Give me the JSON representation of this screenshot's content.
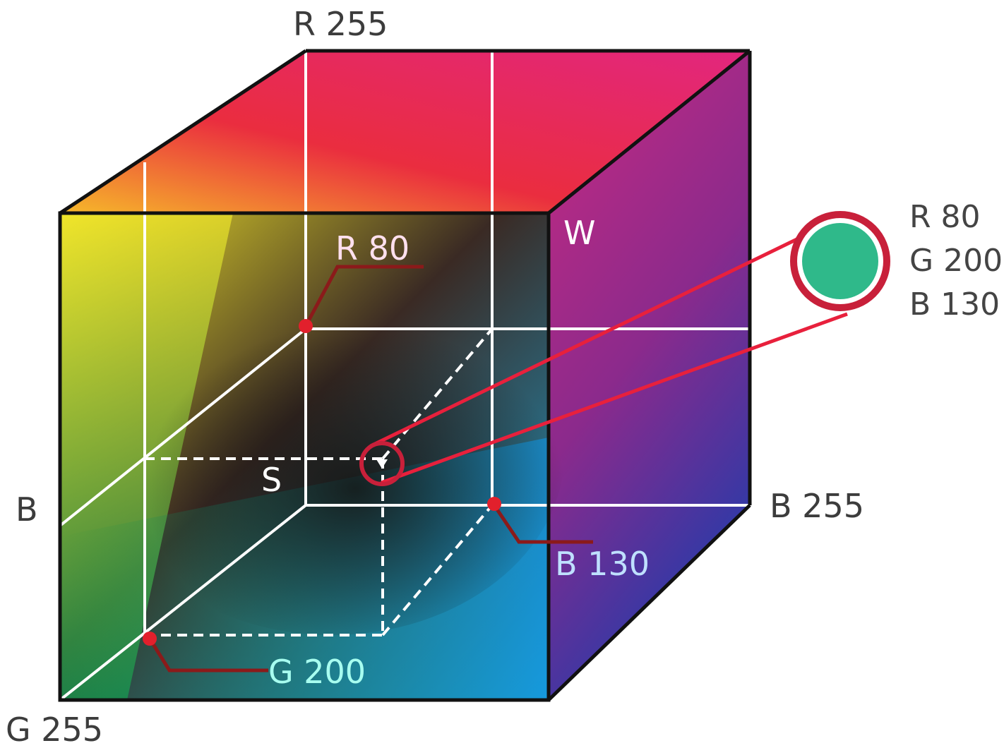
{
  "labels": {
    "r255": "R 255",
    "w": "W",
    "r80": "R 80",
    "s": "S",
    "b_axis": "B",
    "b255": "B 255",
    "b130": "B 130",
    "g200": "G 200",
    "g255": "G 255"
  },
  "swatch": {
    "r": "R 80",
    "g": "G 200",
    "b": "B 130",
    "color": "#2fb98a",
    "ring_color": "#c8203a"
  }
}
